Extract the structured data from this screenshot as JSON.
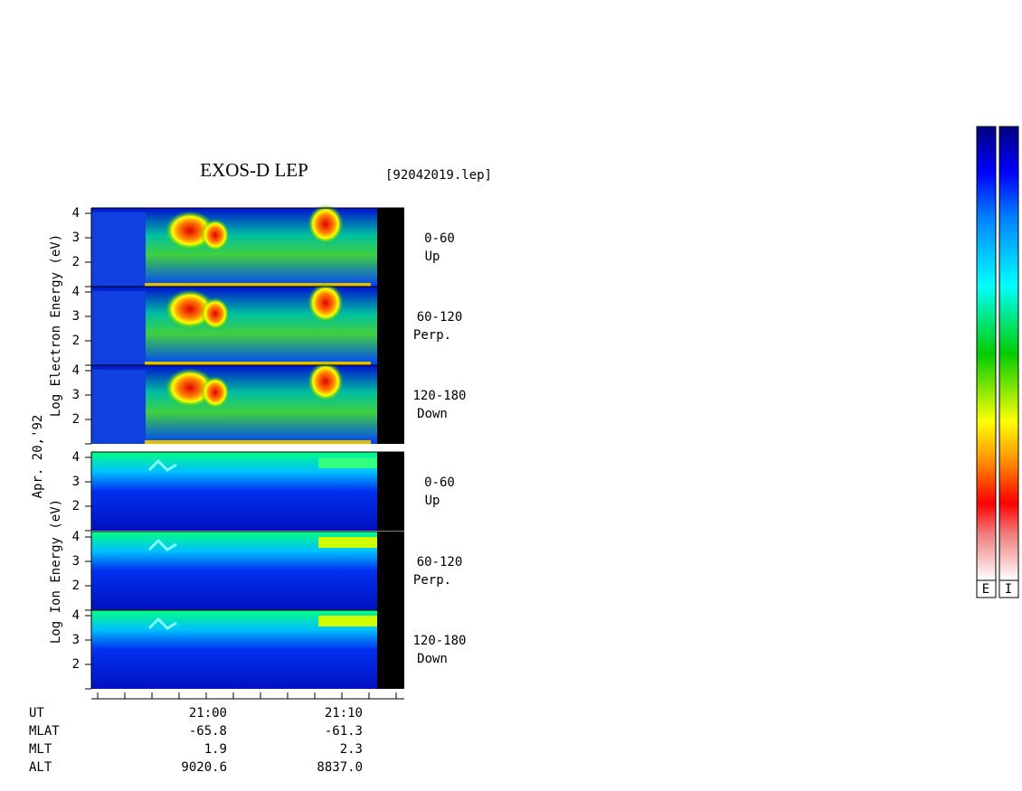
{
  "title": "EXOS-D LEP",
  "file": "[92042019.lep]",
  "date": "Apr. 20,'92",
  "electron_ylabel": "Log  Electron  Energy (eV)",
  "ion_ylabel": "Log  Ion  Energy (eV)",
  "yticks": [
    2,
    3,
    4
  ],
  "panels": [
    {
      "angle": "0-60",
      "direction": "Up"
    },
    {
      "angle": "60-120",
      "direction": "Perp."
    },
    {
      "angle": "120-180",
      "direction": "Down"
    },
    {
      "angle": "0-60",
      "direction": "Up"
    },
    {
      "angle": "60-120",
      "direction": "Perp."
    },
    {
      "angle": "120-180",
      "direction": "Down"
    }
  ],
  "xaxis": {
    "rows": [
      "UT",
      "MLAT",
      "MLT",
      "ALT"
    ],
    "columns": [
      [
        "21:00",
        "-65.8",
        "1.9",
        "9020.6"
      ],
      [
        "21:10",
        "-61.3",
        "2.3",
        "8837.0"
      ]
    ]
  },
  "colorbar": {
    "labels": [
      "E",
      "I"
    ]
  }
}
